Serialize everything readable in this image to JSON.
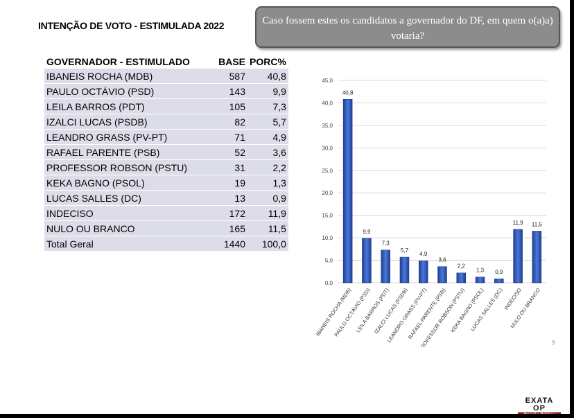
{
  "title": "INTENÇÃO DE VOTO - ESTIMULADA 2022",
  "question": "Caso fossem estes os candidatos a governador do DF, em quem o(a)a) votaria?",
  "table": {
    "headers": [
      "GOVERNADOR - ESTIMULADO",
      "BASE",
      "PORC%"
    ],
    "rows": [
      [
        "IBANEIS ROCHA (MDB)",
        "587",
        "40,8"
      ],
      [
        "PAULO OCTÁVIO (PSD)",
        "143",
        "9,9"
      ],
      [
        "LEILA BARROS (PDT)",
        "105",
        "7,3"
      ],
      [
        "IZALCI LUCAS (PSDB)",
        "82",
        "5,7"
      ],
      [
        "LEANDRO GRASS (PV-PT)",
        "71",
        "4,9"
      ],
      [
        "RAFAEL PARENTE (PSB)",
        "52",
        "3,6"
      ],
      [
        "PROFESSOR ROBSON (PSTU)",
        "31",
        "2,2"
      ],
      [
        "KEKA BAGNO (PSOL)",
        "19",
        "1,3"
      ],
      [
        "LUCAS SALLES (DC)",
        "13",
        "0,9"
      ],
      [
        "INDECISO",
        "172",
        "11,9"
      ],
      [
        "NULO OU BRANCO",
        "165",
        "11,5"
      ],
      [
        "Total Geral",
        "1440",
        "100,0"
      ]
    ]
  },
  "chart_data": {
    "type": "bar",
    "categories": [
      "IBANEIS ROCHA (MDB)",
      "PAULO OCTÁVIO (PSD)",
      "LEILA BARROS (PDT)",
      "IZALCI LUCAS (PSDB)",
      "LEANDRO GRASS (PV-PT)",
      "RAFAEL PARENTE (PSB)",
      "PROFESSOR ROBSON (PSTU)",
      "KEKA BAGNO (PSOL)",
      "LUCAS SALLES (DC)",
      "INDECISO",
      "NULO OU BRANCO"
    ],
    "values": [
      40.8,
      9.9,
      7.3,
      5.7,
      4.9,
      3.6,
      2.2,
      1.3,
      0.9,
      11.9,
      11.5
    ],
    "value_labels": [
      "40,8",
      "9,9",
      "7,3",
      "5,7",
      "4,9",
      "3,6",
      "2,2",
      "1,3",
      "0,9",
      "11,9",
      "11,5"
    ],
    "yticks": [
      "0,0",
      "5,0",
      "10,0",
      "15,0",
      "20,0",
      "25,0",
      "30,0",
      "35,0",
      "40,0",
      "45,0"
    ],
    "ylim": [
      0,
      45
    ],
    "grid": true,
    "bar_color": "#2f56b8"
  },
  "page_number": "9",
  "logo": {
    "main": "EXATA OP",
    "sub": "Opinião Pública"
  }
}
